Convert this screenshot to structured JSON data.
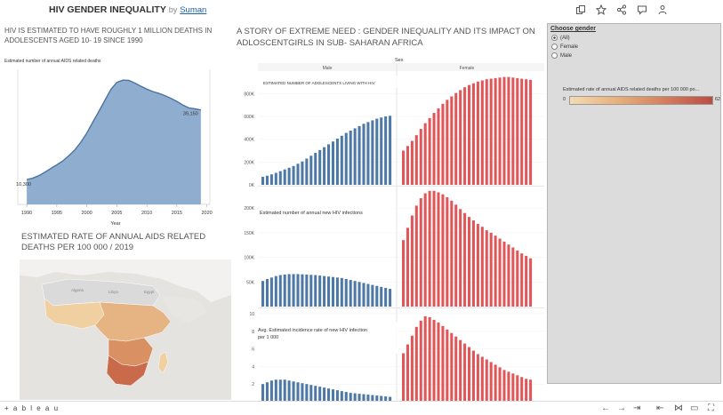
{
  "header": {
    "title": "HIV GENDER INEQUALITY",
    "by": "by",
    "author": "Suman"
  },
  "toolbar_icons": [
    "duplicate-icon",
    "star-icon",
    "share-icon",
    "comment-icon",
    "people-icon"
  ],
  "left_panel": {
    "title": "HIV IS ESTIMATED TO HAVE ROUGHLY 1 MILLION DEATHS IN ADOLESCENTS AGED 10- 19 SINCE 1990",
    "chart_label": "Estimated number of annual AIDS related deaths",
    "start_annotation": "10,300",
    "end_annotation": "39,150",
    "x_axis_title": "Year",
    "x_ticks": [
      "1990",
      "1995",
      "2000",
      "2005",
      "2010",
      "2015",
      "2020"
    ]
  },
  "map_panel": {
    "title": "ESTIMATED RATE OF ANNUAL AIDS RELATED DEATHS PER 100 000 / 2019",
    "region_labels": [
      "Algeria",
      "Libya",
      "Egypt"
    ]
  },
  "story": {
    "title": "A STORY OF EXTREME NEED : GENDER INEQUALITY AND ITS IMPACT ON ADLOSCENTGIRLS IN SUB- SAHARAN AFRICA",
    "column_header": "Sex",
    "male_label": "Male",
    "female_label": "Female",
    "panel1_label": "ESTIMATED NUMBER OF ADOLESCENTS LIVING WITH HIV",
    "panel2_label": "Estimated number of annual new HIV infections",
    "panel3_label": "Avg. Estimated incidence rate of new HIV infection per 1 000",
    "panel1_ticks": [
      "800K",
      "600K",
      "400K",
      "200K",
      "0K"
    ],
    "panel2_ticks": [
      "200K",
      "150K",
      "100K",
      "50K"
    ],
    "panel3_ticks": [
      "10",
      "8",
      "6",
      "4",
      "2"
    ]
  },
  "sidebar": {
    "filter_title": "Choose gender",
    "options": [
      "(All)",
      "Female",
      "Male"
    ],
    "selected": "(All)",
    "legend_title": "Estimated rate of annual AIDS related deaths  per 100 000 po...",
    "legend_min": "0",
    "legend_max": "62"
  },
  "footer": {
    "logo": "+ a b l e a u",
    "icons": [
      "undo-icon",
      "redo-icon",
      "revert-icon",
      "pause-icon",
      "share-icon",
      "download-icon",
      "fullscreen-icon"
    ]
  },
  "colors": {
    "male": "#4e79a7",
    "female": "#e15759",
    "area": "#8fadcf",
    "area_line": "#4e73a3"
  },
  "chart_data": [
    {
      "type": "area",
      "title": "Estimated number of annual AIDS related deaths",
      "xlabel": "Year",
      "x": [
        1990,
        1991,
        1992,
        1993,
        1994,
        1995,
        1996,
        1997,
        1998,
        1999,
        2000,
        2001,
        2002,
        2003,
        2004,
        2005,
        2006,
        2007,
        2008,
        2009,
        2010,
        2011,
        2012,
        2013,
        2014,
        2015,
        2016,
        2017,
        2018,
        2019
      ],
      "values": [
        10300,
        10900,
        11900,
        13300,
        14900,
        16400,
        18000,
        20200,
        22600,
        25800,
        29600,
        34100,
        38500,
        43100,
        47600,
        50600,
        51500,
        51400,
        50300,
        49000,
        47800,
        46800,
        46000,
        45100,
        44000,
        42700,
        41200,
        40000,
        39600,
        39150
      ],
      "ylim": [
        0,
        56000
      ]
    },
    {
      "type": "bar",
      "title": "ESTIMATED NUMBER OF ADOLESCENTS LIVING WITH HIV",
      "x": [
        1990,
        1991,
        1992,
        1993,
        1994,
        1995,
        1996,
        1997,
        1998,
        1999,
        2000,
        2001,
        2002,
        2003,
        2004,
        2005,
        2006,
        2007,
        2008,
        2009,
        2010,
        2011,
        2012,
        2013,
        2014,
        2015,
        2016,
        2017,
        2018,
        2019
      ],
      "series": [
        {
          "name": "Male",
          "values": [
            70000,
            80000,
            92000,
            105000,
            120000,
            135000,
            150000,
            165000,
            185000,
            205000,
            230000,
            255000,
            280000,
            305000,
            330000,
            355000,
            380000,
            405000,
            430000,
            455000,
            475000,
            495000,
            515000,
            535000,
            550000,
            565000,
            580000,
            590000,
            600000,
            605000
          ]
        },
        {
          "name": "Female",
          "values": [
            300000,
            340000,
            385000,
            435000,
            490000,
            540000,
            585000,
            630000,
            670000,
            710000,
            745000,
            775000,
            805000,
            830000,
            855000,
            875000,
            890000,
            905000,
            915000,
            925000,
            930000,
            935000,
            940000,
            945000,
            945000,
            940000,
            935000,
            930000,
            925000,
            920000
          ]
        }
      ],
      "ylim": [
        0,
        950000
      ]
    },
    {
      "type": "bar",
      "title": "Estimated number of annual new HIV infections",
      "x": [
        1990,
        1991,
        1992,
        1993,
        1994,
        1995,
        1996,
        1997,
        1998,
        1999,
        2000,
        2001,
        2002,
        2003,
        2004,
        2005,
        2006,
        2007,
        2008,
        2009,
        2010,
        2011,
        2012,
        2013,
        2014,
        2015,
        2016,
        2017,
        2018,
        2019
      ],
      "series": [
        {
          "name": "Male",
          "values": [
            52000,
            56000,
            59000,
            62000,
            64000,
            65000,
            66000,
            66000,
            66000,
            65500,
            65000,
            64500,
            64000,
            63000,
            62000,
            61000,
            60000,
            59000,
            58000,
            56000,
            54000,
            52000,
            50000,
            48000,
            46000,
            44000,
            42000,
            40000,
            38000,
            36000
          ]
        },
        {
          "name": "Female",
          "values": [
            135000,
            160000,
            185000,
            205000,
            220000,
            230000,
            235000,
            235000,
            232000,
            228000,
            222000,
            215000,
            207000,
            198000,
            190000,
            182000,
            175000,
            168000,
            162000,
            155000,
            150000,
            144000,
            138000,
            132000,
            126000,
            120000,
            114000,
            108000,
            103000,
            98000
          ]
        }
      ],
      "ylim": [
        0,
        240000
      ]
    },
    {
      "type": "bar",
      "title": "Avg. Estimated incidence rate of new HIV infection per 1 000",
      "x": [
        1990,
        1991,
        1992,
        1993,
        1994,
        1995,
        1996,
        1997,
        1998,
        1999,
        2000,
        2001,
        2002,
        2003,
        2004,
        2005,
        2006,
        2007,
        2008,
        2009,
        2010,
        2011,
        2012,
        2013,
        2014,
        2015,
        2016,
        2017,
        2018,
        2019
      ],
      "series": [
        {
          "name": "Male",
          "values": [
            2.0,
            2.2,
            2.4,
            2.5,
            2.5,
            2.5,
            2.4,
            2.3,
            2.2,
            2.1,
            2.0,
            1.9,
            1.8,
            1.7,
            1.6,
            1.5,
            1.4,
            1.3,
            1.2,
            1.1,
            1.0,
            0.95,
            0.9,
            0.85,
            0.8,
            0.75,
            0.7,
            0.65,
            0.6,
            0.55
          ]
        },
        {
          "name": "Female",
          "values": [
            5.5,
            6.5,
            7.5,
            8.5,
            9.2,
            9.7,
            9.6,
            9.3,
            9.0,
            8.6,
            8.2,
            7.8,
            7.4,
            7.0,
            6.6,
            6.2,
            5.8,
            5.4,
            5.1,
            4.8,
            4.5,
            4.2,
            3.9,
            3.6,
            3.4,
            3.2,
            3.0,
            2.8,
            2.6,
            2.5
          ]
        }
      ],
      "ylim": [
        0,
        10.5
      ]
    }
  ]
}
